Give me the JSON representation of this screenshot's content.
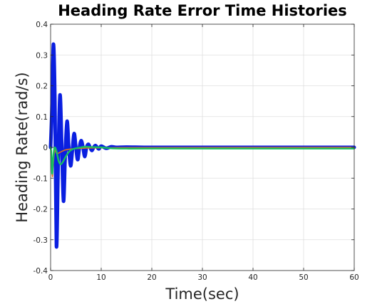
{
  "chart_data": {
    "type": "line",
    "title": "Heading Rate Error Time Histories",
    "xlabel": "Time(sec)",
    "ylabel": "Heading Rate(rad/s)",
    "xlim": [
      0,
      60
    ],
    "ylim": [
      -0.4,
      0.4
    ],
    "xticks": [
      0,
      10,
      20,
      30,
      40,
      50,
      60
    ],
    "yticks": [
      -0.4,
      -0.3,
      -0.2,
      -0.1,
      0,
      0.1,
      0.2,
      0.3,
      0.4
    ],
    "xtick_labels": [
      "0",
      "10",
      "20",
      "30",
      "40",
      "50",
      "60"
    ],
    "ytick_labels": [
      "-0.4",
      "-0.3",
      "-0.2",
      "-0.1",
      "0",
      "0.1",
      "0.2",
      "0.3",
      "0.4"
    ],
    "grid": true,
    "legend": "none",
    "series": [
      {
        "color": "#0a1fe0",
        "stroke": "thick",
        "x": [
          0,
          0.25,
          0.55,
          0.85,
          1.15,
          1.5,
          1.85,
          2.2,
          2.55,
          2.9,
          3.25,
          3.6,
          3.95,
          4.3,
          4.65,
          5.0,
          5.35,
          5.7,
          6.05,
          6.4,
          6.75,
          7.1,
          7.45,
          7.8,
          8.15,
          8.5,
          8.85,
          9.2,
          9.55,
          10.0,
          11,
          12,
          13,
          15,
          20,
          30,
          40,
          50,
          60
        ],
        "y": [
          0,
          0.12,
          0.335,
          0.15,
          -0.32,
          -0.05,
          0.17,
          0.01,
          -0.175,
          -0.02,
          0.085,
          0.0,
          -0.06,
          -0.01,
          0.045,
          0.0,
          -0.04,
          0.0,
          0.022,
          0.0,
          -0.03,
          0.0,
          0.01,
          0.0,
          -0.01,
          0.0,
          0.006,
          0.0,
          -0.005,
          0.004,
          -0.003,
          0.002,
          0.0,
          0.001,
          0.0,
          0.0,
          0.0,
          0.0,
          0.0
        ]
      },
      {
        "color": "#e07020",
        "stroke": "normal",
        "x": [
          0,
          0.2,
          0.35,
          0.5,
          0.8,
          1.2,
          2.0,
          3.0,
          5.0,
          8.0,
          15,
          60
        ],
        "y": [
          0,
          -0.05,
          -0.095,
          -0.06,
          -0.01,
          -0.02,
          -0.015,
          -0.008,
          -0.004,
          -0.002,
          -0.001,
          0.0
        ]
      },
      {
        "color": "#16c060",
        "stroke": "medium",
        "x": [
          0,
          0.15,
          0.3,
          0.45,
          0.7,
          0.95,
          1.2,
          1.6,
          2.0,
          2.5,
          3.0,
          3.6,
          4.2,
          5.0,
          6.0,
          7.0,
          8.0,
          10,
          12,
          15,
          20,
          30,
          40,
          50,
          60
        ],
        "y": [
          0,
          -0.02,
          -0.085,
          -0.05,
          -0.005,
          -0.002,
          -0.015,
          -0.045,
          -0.055,
          -0.045,
          -0.03,
          -0.015,
          -0.007,
          -0.003,
          0.0,
          0.002,
          0.001,
          0.0,
          -0.003,
          -0.004,
          -0.004,
          -0.004,
          -0.004,
          -0.004,
          -0.004
        ]
      }
    ]
  }
}
